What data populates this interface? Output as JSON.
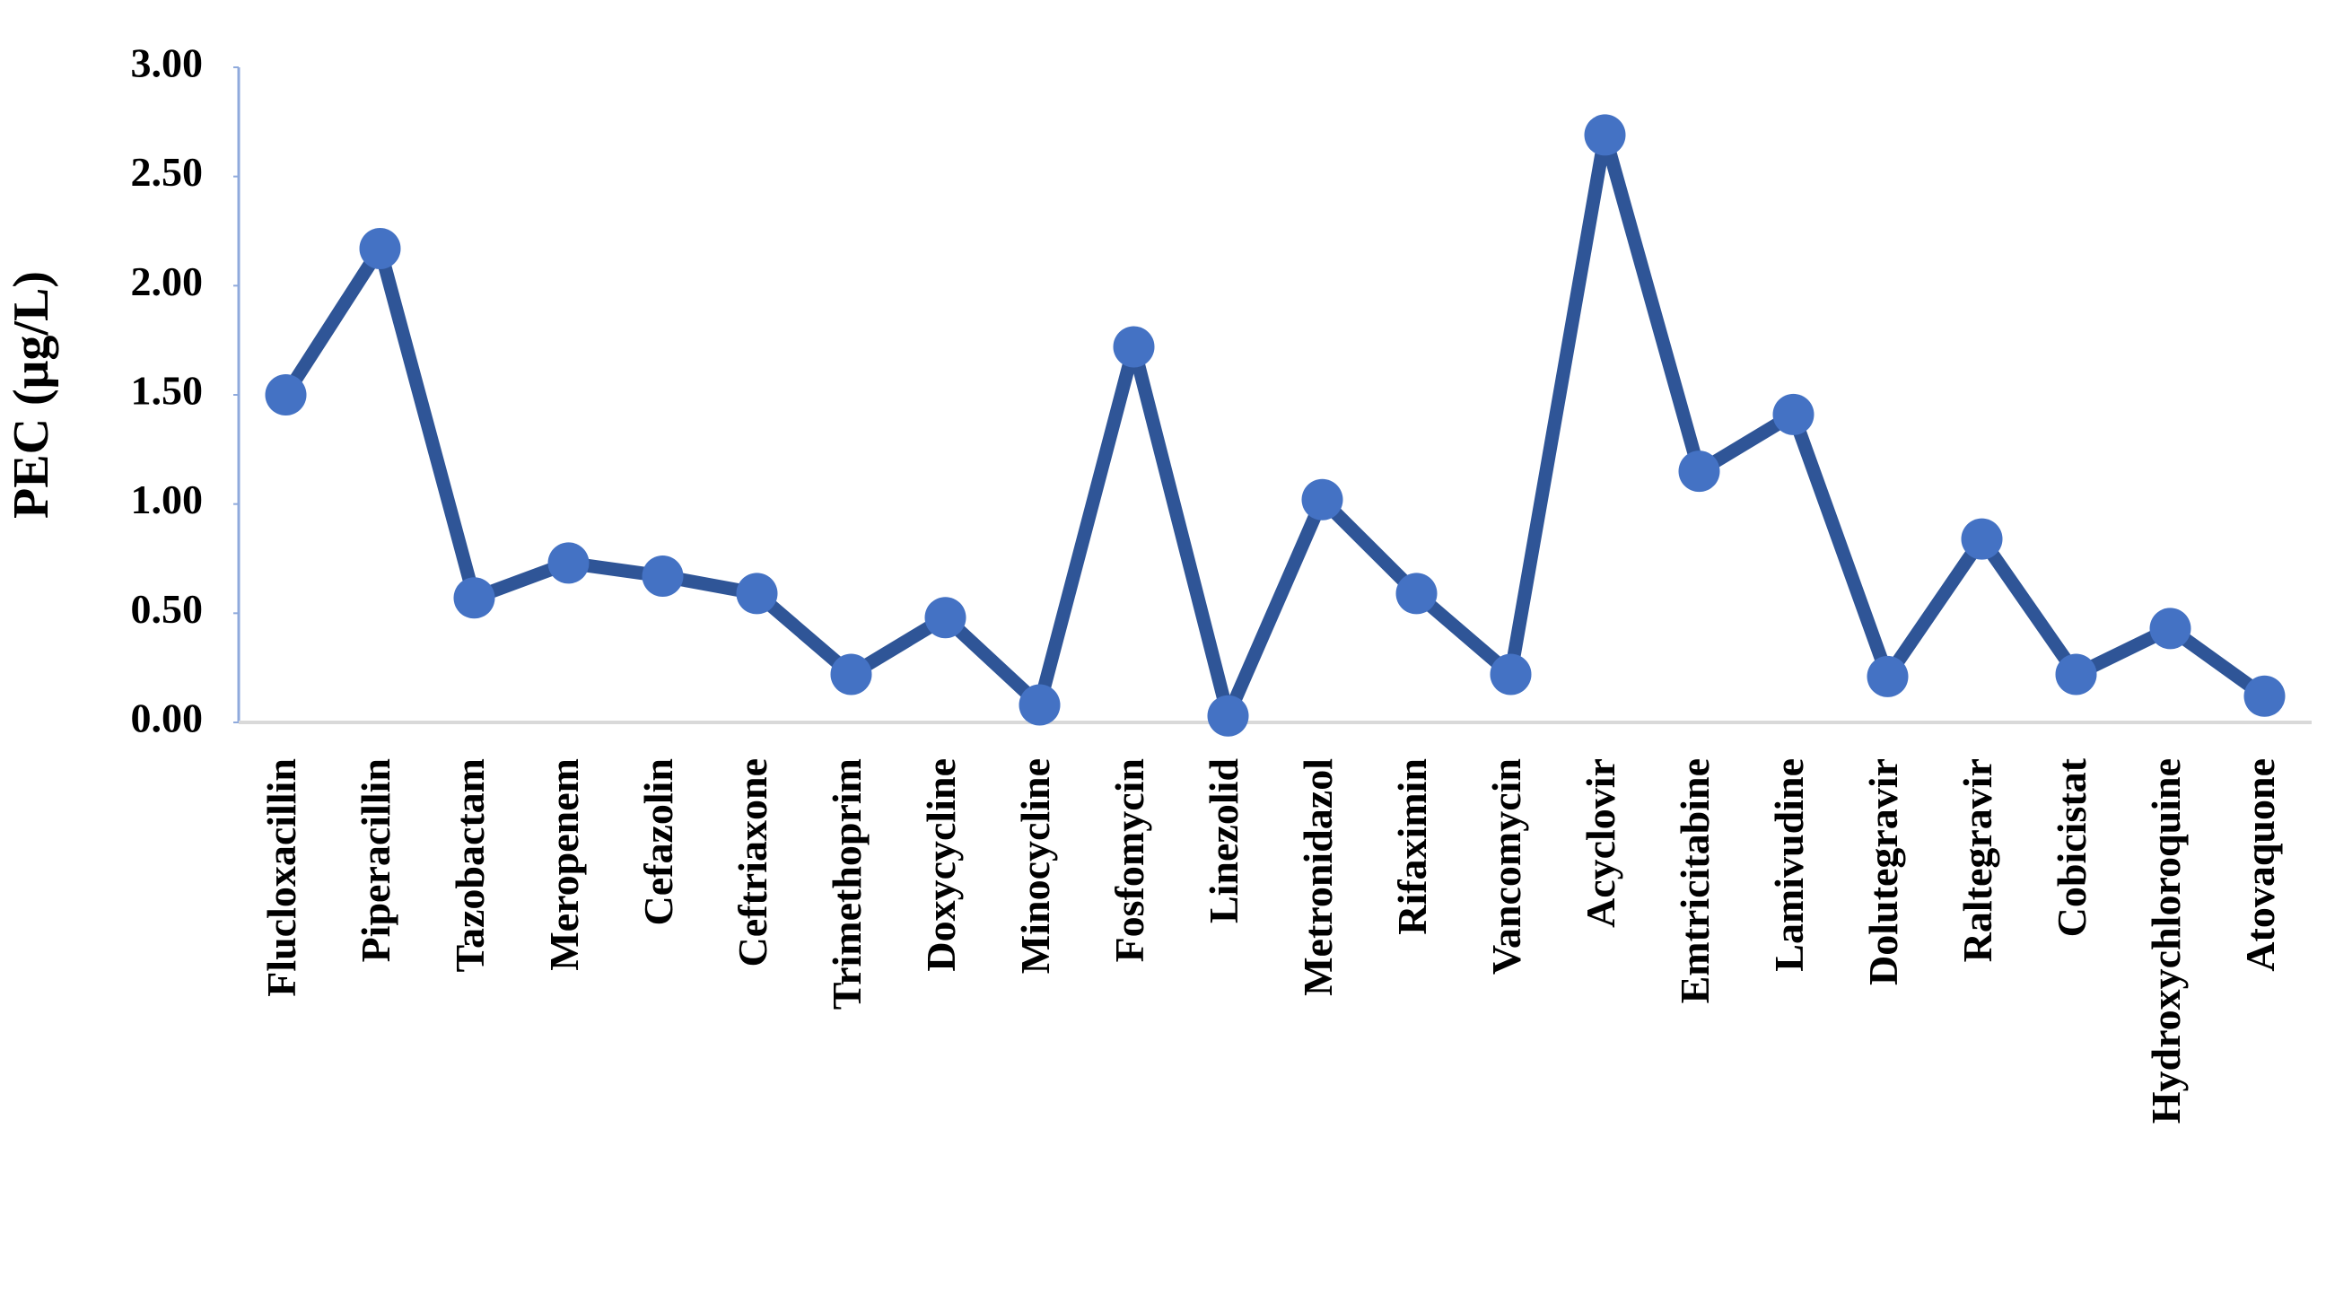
{
  "chart_data": {
    "type": "line",
    "y_label": "PEC (μg/L)",
    "categories": [
      "Flucloxacillin",
      "Piperacillin",
      "Tazobactam",
      "Meropenem",
      "Cefazolin",
      "Ceftriaxone",
      "Trimethoprim",
      "Doxycycline",
      "Minocycline",
      "Fosfomycin",
      "Linezolid",
      "Metronidazol",
      "Rifaximin",
      "Vancomycin",
      "Acyclovir",
      "Emtricitabine",
      "Lamivudine",
      "Dolutegravir",
      "Raltegravir",
      "Cobicistat",
      "Hydroxychloroquine",
      "Atovaquone"
    ],
    "values": [
      1.5,
      2.17,
      0.57,
      0.73,
      0.67,
      0.59,
      0.22,
      0.48,
      0.08,
      1.72,
      0.03,
      1.02,
      0.59,
      0.22,
      2.69,
      1.15,
      1.41,
      0.21,
      0.84,
      0.22,
      0.43,
      0.12
    ],
    "line_color": "#2f5597",
    "marker_color": "#4472c4",
    "ylim": [
      0,
      3
    ],
    "yticks": [
      {
        "value": 0,
        "label": "0.00"
      },
      {
        "value": 0.5,
        "label": "0.50"
      },
      {
        "value": 1,
        "label": "1.00"
      },
      {
        "value": 1.5,
        "label": "1.50"
      },
      {
        "value": 2,
        "label": "2.00"
      },
      {
        "value": 2.5,
        "label": "2.50"
      },
      {
        "value": 3,
        "label": "3.00"
      }
    ]
  }
}
